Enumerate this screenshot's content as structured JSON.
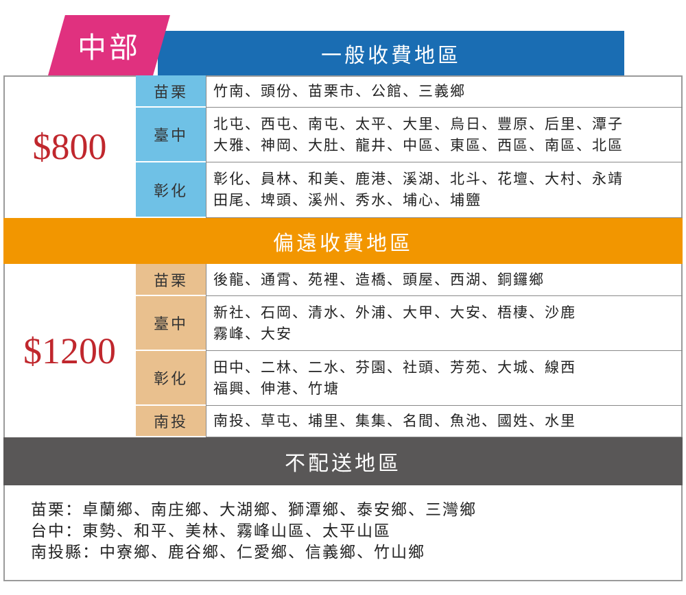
{
  "header": {
    "region": "中部"
  },
  "sections": [
    {
      "title": "一般收費地區",
      "price": "$800",
      "rows": [
        {
          "area": "苗栗",
          "towns": [
            "竹南、頭份、苗栗市、公館、三義鄉"
          ]
        },
        {
          "area": "臺中",
          "towns": [
            "北屯、西屯、南屯、太平、大里、烏日、豐原、后里、潭子",
            "大雅、神岡、大肚、龍井、中區、東區、西區、南區、北區"
          ]
        },
        {
          "area": "彰化",
          "towns": [
            "彰化、員林、和美、鹿港、溪湖、北斗、花壇、大村、永靖",
            "田尾、埤頭、溪州、秀水、埔心、埔鹽"
          ]
        }
      ]
    },
    {
      "title": "偏遠收費地區",
      "price": "$1200",
      "rows": [
        {
          "area": "苗栗",
          "towns": [
            "後龍、通霄、苑裡、造橋、頭屋、西湖、銅鑼鄉"
          ]
        },
        {
          "area": "臺中",
          "towns": [
            "新社、石岡、清水、外浦、大甲、大安、梧棲、沙鹿",
            "霧峰、大安"
          ]
        },
        {
          "area": "彰化",
          "towns": [
            "田中、二林、二水、芬園、社頭、芳苑、大城、線西",
            "福興、伸港、竹塘"
          ]
        },
        {
          "area": "南投",
          "towns": [
            "南投、草屯、埔里、集集、名間、魚池、國姓、水里"
          ]
        }
      ]
    }
  ],
  "no_delivery": {
    "title": "不配送地區",
    "lines": [
      "苗栗：卓蘭鄉、南庄鄉、大湖鄉、獅潭鄉、泰安鄉、三灣鄉",
      "台中：東勢、和平、美林、霧峰山區、太平山區",
      "南投縣：中寮鄉、鹿谷鄉、仁愛鄉、信義鄉、竹山鄉"
    ]
  }
}
